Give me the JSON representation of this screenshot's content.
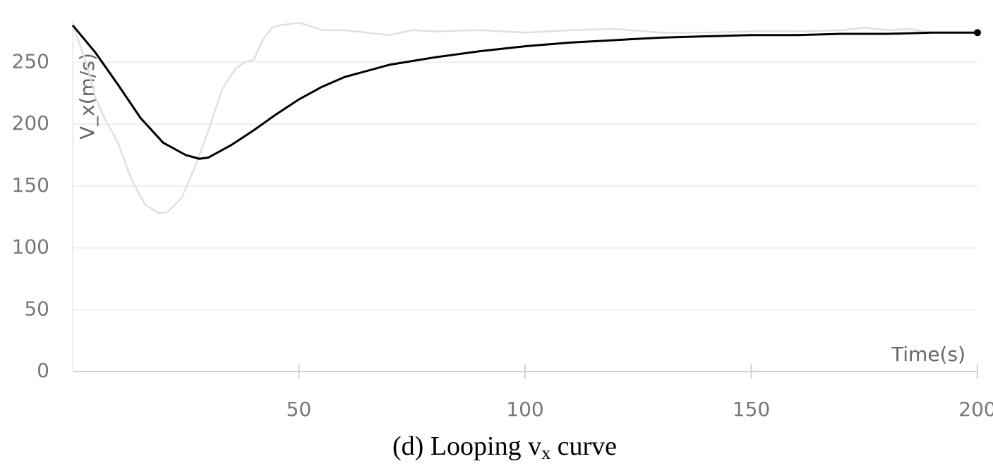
{
  "chart_data": {
    "type": "line",
    "y_label": "V_x(m/s)",
    "x_label": "Time(s)",
    "caption": {
      "prefix": "(d) Looping v",
      "subscript": "x",
      "suffix": " curve"
    },
    "xlim": [
      0,
      200
    ],
    "ylim": [
      0,
      285
    ],
    "xticks": [
      50,
      100,
      150,
      200
    ],
    "yticks": [
      0,
      50,
      100,
      150,
      200,
      250
    ],
    "grid": true,
    "series": [
      {
        "color": "#e0e0e0",
        "x": [
          0,
          3,
          5,
          7,
          10,
          13,
          16,
          19,
          21,
          24,
          27,
          30,
          33,
          36,
          38,
          40,
          42,
          44,
          46,
          48,
          50,
          52,
          55,
          60,
          65,
          70,
          75,
          80,
          90,
          100,
          110,
          120,
          130,
          140,
          150,
          160,
          170,
          175,
          180,
          185,
          190
        ],
        "values": [
          280,
          250,
          222,
          205,
          185,
          155,
          135,
          128,
          129,
          140,
          165,
          195,
          228,
          245,
          250,
          252,
          268,
          278,
          280,
          281,
          282,
          280,
          276,
          276,
          274,
          272,
          276,
          275,
          276,
          274,
          276,
          277,
          274,
          274,
          275,
          275,
          276,
          278,
          276,
          277,
          274
        ]
      },
      {
        "color": "#000000",
        "x": [
          0,
          5,
          10,
          15,
          20,
          25,
          28,
          30,
          35,
          40,
          45,
          50,
          55,
          60,
          70,
          80,
          90,
          100,
          110,
          120,
          130,
          140,
          150,
          160,
          170,
          180,
          190,
          200
        ],
        "values": [
          280,
          258,
          232,
          205,
          185,
          175,
          172,
          173,
          183,
          195,
          208,
          220,
          230,
          238,
          248,
          254,
          259,
          263,
          266,
          268,
          270,
          271,
          272,
          272,
          273,
          273,
          274,
          274
        ]
      }
    ]
  }
}
